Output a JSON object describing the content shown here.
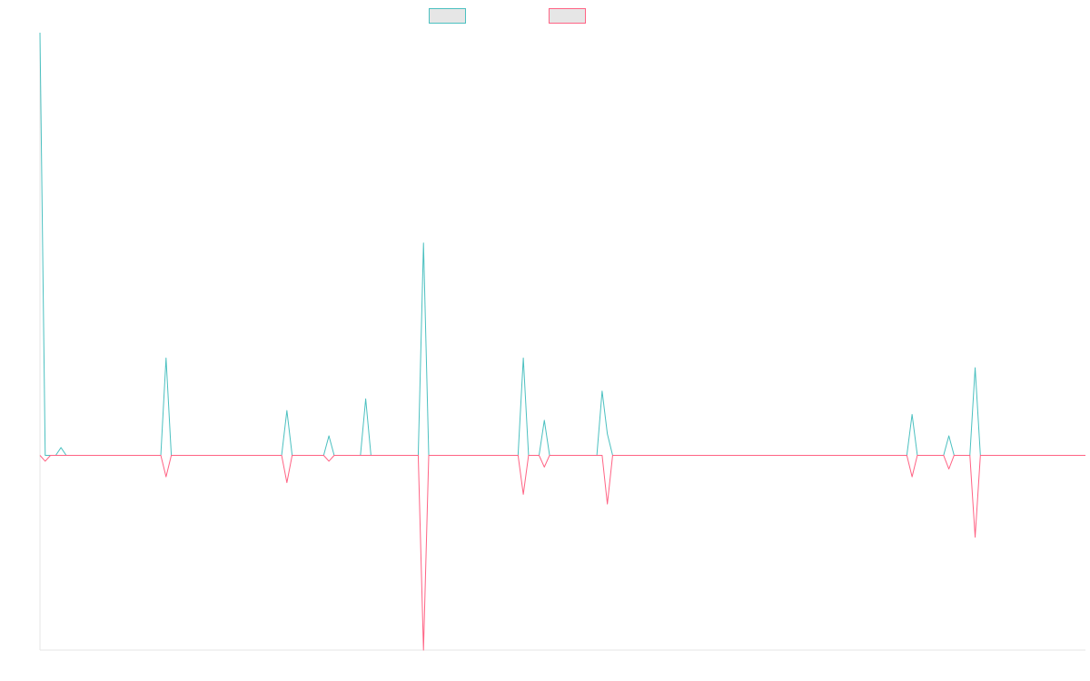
{
  "colors": {
    "series_positive": "#4bc0c0",
    "series_negative": "#ff6384",
    "legend_fill": "#e6e6e6",
    "axis": "#e5e5e5",
    "background": "#ffffff"
  },
  "chart_data": {
    "type": "area",
    "title": "",
    "xlabel": "",
    "ylabel": "",
    "grid": false,
    "legend_position": "top-center",
    "ylim": [
      -1,
      2.17
    ],
    "x_count": 200,
    "series": [
      {
        "color_key": "series_positive",
        "points": [
          {
            "i": 0,
            "y": 2.17
          },
          {
            "i": 1,
            "y": 0.0
          },
          {
            "i": 4,
            "y": 0.04
          },
          {
            "i": 24,
            "y": 0.5
          },
          {
            "i": 47,
            "y": 0.23
          },
          {
            "i": 55,
            "y": 0.1
          },
          {
            "i": 62,
            "y": 0.29
          },
          {
            "i": 73,
            "y": 1.09
          },
          {
            "i": 92,
            "y": 0.5
          },
          {
            "i": 96,
            "y": 0.18
          },
          {
            "i": 107,
            "y": 0.33
          },
          {
            "i": 108,
            "y": 0.11
          },
          {
            "i": 166,
            "y": 0.21
          },
          {
            "i": 173,
            "y": 0.1
          },
          {
            "i": 178,
            "y": 0.45
          }
        ]
      },
      {
        "color_key": "series_negative",
        "points": [
          {
            "i": 1,
            "y": -0.03
          },
          {
            "i": 24,
            "y": -0.11
          },
          {
            "i": 47,
            "y": -0.14
          },
          {
            "i": 55,
            "y": -0.03
          },
          {
            "i": 73,
            "y": -1.0
          },
          {
            "i": 92,
            "y": -0.2
          },
          {
            "i": 96,
            "y": -0.06
          },
          {
            "i": 108,
            "y": -0.25
          },
          {
            "i": 136,
            "y": 0.0
          },
          {
            "i": 166,
            "y": -0.11
          },
          {
            "i": 173,
            "y": -0.07
          },
          {
            "i": 178,
            "y": -0.42
          }
        ]
      }
    ]
  }
}
